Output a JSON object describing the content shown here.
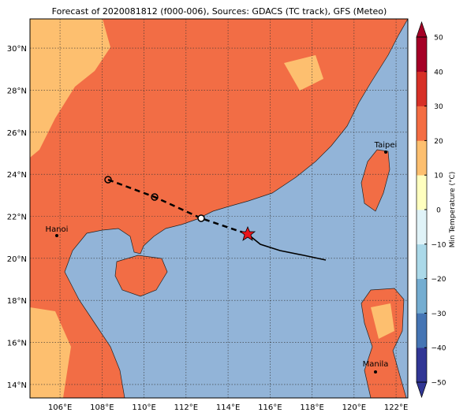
{
  "title": "Forecast of 2020081812 (f000-006), Sources: GDACS (TC track), GFS (Meteo)",
  "map": {
    "lonlim": [
      104.57,
      122.56
    ],
    "latlim": [
      13.36,
      31.39
    ],
    "lonticks": [
      {
        "value": 106,
        "label": "106°E"
      },
      {
        "value": 108,
        "label": "108°E"
      },
      {
        "value": 110,
        "label": "110°E"
      },
      {
        "value": 112,
        "label": "112°E"
      },
      {
        "value": 114,
        "label": "114°E"
      },
      {
        "value": 116,
        "label": "116°E"
      },
      {
        "value": 118,
        "label": "118°E"
      },
      {
        "value": 120,
        "label": "120°E"
      },
      {
        "value": 122,
        "label": "122°E"
      }
    ],
    "latticks": [
      {
        "value": 14,
        "label": "14°N"
      },
      {
        "value": 16,
        "label": "16°N"
      },
      {
        "value": 18,
        "label": "18°N"
      },
      {
        "value": 20,
        "label": "20°N"
      },
      {
        "value": 22,
        "label": "22°N"
      },
      {
        "value": 24,
        "label": "24°N"
      },
      {
        "value": 26,
        "label": "26°N"
      },
      {
        "value": 28,
        "label": "28°N"
      },
      {
        "value": 30,
        "label": "30°N"
      }
    ],
    "cities": [
      "Hanoi",
      "Taipei",
      "Manila"
    ]
  },
  "colorbar": {
    "label": "Min Temperature (°C)",
    "lim": [
      -50,
      50
    ],
    "ticks": [
      {
        "value": -50,
        "label": "−50"
      },
      {
        "value": -40,
        "label": "−40"
      },
      {
        "value": -30,
        "label": "−30"
      },
      {
        "value": -20,
        "label": "−20"
      },
      {
        "value": -10,
        "label": "−10"
      },
      0,
      10,
      20,
      30,
      40,
      50
    ],
    "colors": [
      "#313695",
      "#4575b4",
      "#74add1",
      "#abd9e9",
      "#e0f3f8",
      "#ffffbf",
      "#fdbf6f",
      "#f46d43",
      "#d73027",
      "#a50026"
    ]
  }
}
